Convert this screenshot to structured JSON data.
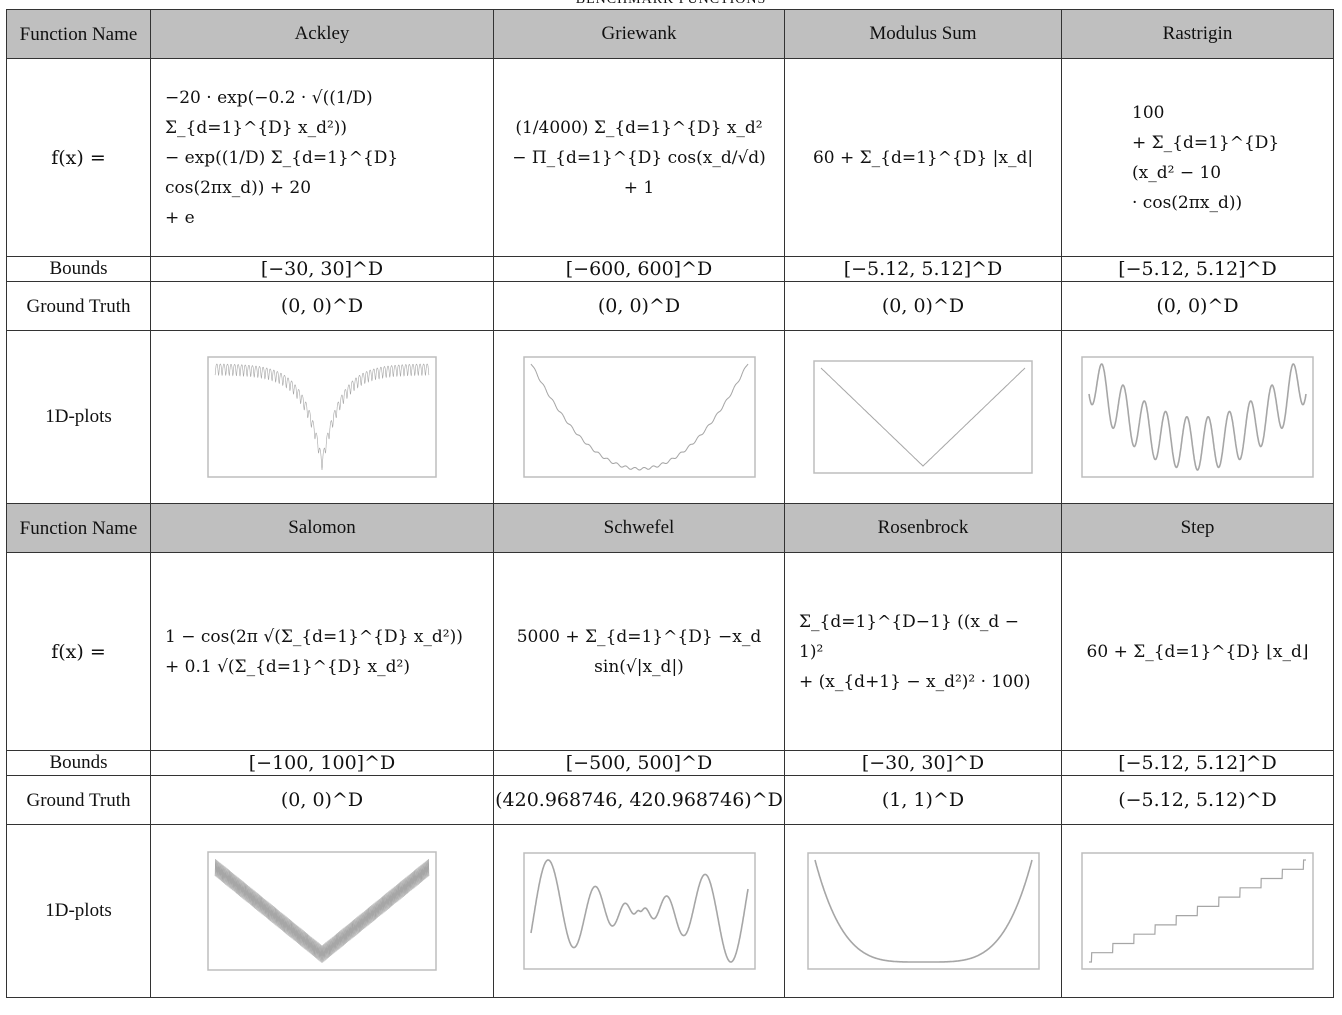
{
  "caption": "BENCHMARK FUNCTIONS",
  "labels": {
    "function_name": "Function Name",
    "fx": "f(x) =",
    "bounds": "Bounds",
    "ground_truth": "Ground Truth",
    "plots": "1D-plots"
  },
  "group1": {
    "names": [
      "Ackley",
      "Griewank",
      "Modulus Sum",
      "Rastrigin"
    ],
    "formulas": [
      "−20 · exp(−0.2 · √((1/D) Σ_{d=1}^{D} x_d²))\n− exp((1/D) Σ_{d=1}^{D} cos(2πx_d)) + 20\n+ e",
      "(1/4000) Σ_{d=1}^{D} x_d² − Π_{d=1}^{D} cos(x_d/√d)\n+ 1",
      "60 + Σ_{d=1}^{D} |x_d|",
      "100\n+ Σ_{d=1}^{D} (x_d² − 10\n· cos(2πx_d))"
    ],
    "bounds": [
      "[−30, 30]^D",
      "[−600, 600]^D",
      "[−5.12, 5.12]^D",
      "[−5.12, 5.12]^D"
    ],
    "ground_truth": [
      "(0, 0)^D",
      "(0, 0)^D",
      "(0, 0)^D",
      "(0, 0)^D"
    ]
  },
  "group2": {
    "names": [
      "Salomon",
      "Schwefel",
      "Rosenbrock",
      "Step"
    ],
    "formulas": [
      "1 − cos(2π √(Σ_{d=1}^{D} x_d²))\n+ 0.1 √(Σ_{d=1}^{D} x_d²)",
      "5000 + Σ_{d=1}^{D} −x_d sin(√|x_d|)",
      "Σ_{d=1}^{D−1} ((x_d − 1)²\n+ (x_{d+1} − x_d²)² · 100)",
      "60 + Σ_{d=1}^{D} ⌊x_d⌋"
    ],
    "bounds": [
      "[−100, 100]^D",
      "[−500, 500]^D",
      "[−30, 30]^D",
      "[−5.12, 5.12]^D"
    ],
    "ground_truth": [
      "(0, 0)^D",
      "(420.968746, 420.968746)^D",
      "(1, 1)^D",
      "(−5.12, 5.12)^D"
    ]
  },
  "colors": {
    "header_bg": "#bfbfbf",
    "plot_line": "#a6a6a6",
    "plot_frame": "#bdbdbd"
  }
}
